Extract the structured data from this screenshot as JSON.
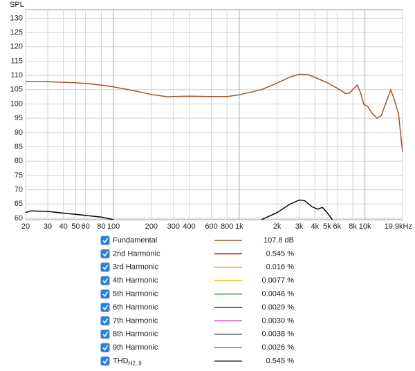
{
  "chart_data": {
    "type": "line",
    "y_label": "SPL",
    "xscale": "log",
    "grid": true,
    "xlim": [
      20,
      19900
    ],
    "ylim": [
      59.5,
      133
    ],
    "xticks": [
      20,
      30,
      40,
      50,
      60,
      80,
      100,
      200,
      300,
      400,
      600,
      800,
      {
        "value": 1000,
        "label": "1k"
      },
      {
        "value": 2000,
        "label": "2k"
      },
      {
        "value": 3000,
        "label": "3k"
      },
      {
        "value": 4000,
        "label": "4k"
      },
      {
        "value": 5000,
        "label": "5k"
      },
      {
        "value": 6000,
        "label": "6k"
      },
      {
        "value": 8000,
        "label": "8k"
      },
      {
        "value": 10000,
        "label": "10k"
      },
      {
        "value": 19900,
        "label": "19.9kHz"
      }
    ],
    "yticks": [
      60,
      65,
      70,
      75,
      80,
      85,
      90,
      95,
      100,
      105,
      110,
      115,
      120,
      125,
      130
    ],
    "series": [
      {
        "name": "Fundamental",
        "color": "#a0522d",
        "value": 107.8,
        "value_label": "107.8 dB",
        "checked": true,
        "x": [
          20,
          30,
          40,
          50,
          60,
          80,
          100,
          150,
          200,
          270,
          300,
          400,
          600,
          800,
          1000,
          1500,
          2000,
          2500,
          3000,
          3500,
          4000,
          5000,
          6000,
          7000,
          7500,
          8200,
          8700,
          9200,
          9800,
          10500,
          11500,
          12500,
          13500,
          15000,
          16000,
          17000,
          18500,
          19900
        ],
        "values": [
          107.8,
          107.8,
          107.6,
          107.4,
          107.2,
          106.6,
          106.0,
          104.5,
          103.3,
          102.5,
          102.6,
          102.7,
          102.6,
          102.6,
          103.2,
          105.0,
          107.3,
          109.3,
          110.4,
          110.3,
          109.3,
          107.5,
          105.5,
          103.7,
          103.8,
          105.5,
          106.6,
          104.0,
          99.8,
          99.2,
          96.5,
          95.0,
          96.0,
          101.5,
          104.9,
          102.0,
          96.5,
          83.2
        ]
      },
      {
        "name": "2nd Harmonic",
        "color": "#8b0000",
        "value": 0.545,
        "value_label": "0.545 %",
        "checked": true,
        "x": [],
        "values": []
      },
      {
        "name": "3rd Harmonic",
        "color": "#e0a020",
        "value": 0.016,
        "value_label": "0.016 %",
        "checked": true,
        "x": [],
        "values": []
      },
      {
        "name": "4th Harmonic",
        "color": "#e6c800",
        "value": 0.0077,
        "value_label": "0.0077 %",
        "checked": true,
        "x": [],
        "values": []
      },
      {
        "name": "5th Harmonic",
        "color": "#2e9a2e",
        "value": 0.0046,
        "value_label": "0.0046 %",
        "checked": true,
        "x": [],
        "values": []
      },
      {
        "name": "6th Harmonic",
        "color": "#2a3f8f",
        "value": 0.0029,
        "value_label": "0.0029 %",
        "checked": true,
        "x": [],
        "values": []
      },
      {
        "name": "7th Harmonic",
        "color": "#c040c0",
        "value": 0.003,
        "value_label": "0.0030 %",
        "checked": true,
        "x": [],
        "values": []
      },
      {
        "name": "8th Harmonic",
        "color": "#555555",
        "value": 0.0038,
        "value_label": "0.0038 %",
        "checked": true,
        "x": [],
        "values": []
      },
      {
        "name": "9th Harmonic",
        "color": "#20a0a0",
        "value": 0.0026,
        "value_label": "0.0026 %",
        "checked": true,
        "x": [],
        "values": []
      },
      {
        "name": "THD",
        "name_sub": "H2..9",
        "color": "#000000",
        "value": 0.545,
        "value_label": "0.545 %",
        "checked": true,
        "x": [
          20,
          22,
          30,
          40,
          60,
          80,
          100,
          1200,
          1500,
          2000,
          2500,
          3000,
          3300,
          3800,
          4200,
          4600,
          5000,
          5500
        ],
        "values": [
          62.0,
          62.6,
          62.4,
          61.8,
          61.0,
          60.4,
          59.5,
          null,
          59.5,
          62.0,
          64.8,
          66.4,
          66.2,
          64.0,
          63.2,
          63.8,
          62.0,
          59.5
        ]
      }
    ]
  }
}
